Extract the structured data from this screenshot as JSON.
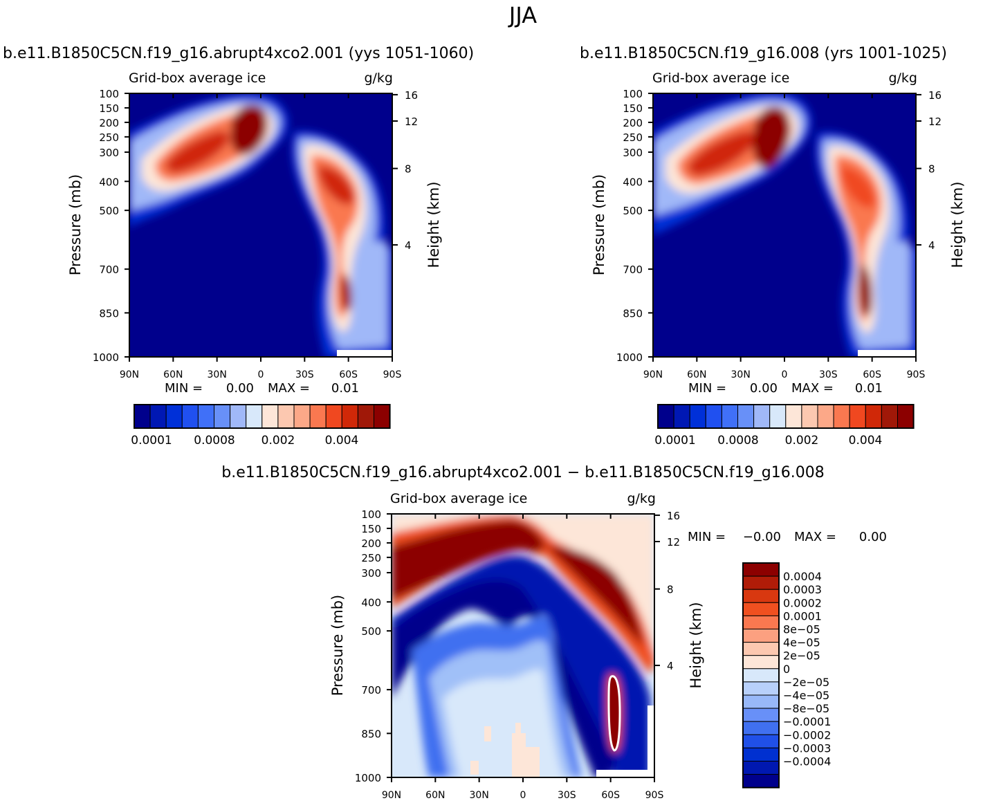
{
  "figure_title": "JJA",
  "colors": {
    "panel_top": [
      "#00008c",
      "#0018b4",
      "#0030d8",
      "#2050f0",
      "#4070f8",
      "#6890f8",
      "#a0b8f8",
      "#d8e8fa",
      "#fde6d8",
      "#fcc8b0",
      "#fca888",
      "#fa7850",
      "#f04820",
      "#d02808",
      "#a01808",
      "#8c0000"
    ],
    "diff": [
      "#8c0000",
      "#b01c08",
      "#d83810",
      "#f05020",
      "#fa7850",
      "#fca080",
      "#fcc8b0",
      "#fde6d8",
      "#d8e8fa",
      "#b8d0fa",
      "#98b8f8",
      "#6890f8",
      "#4070f0",
      "#2050e8",
      "#0030d0",
      "#0018b0",
      "#00008c"
    ]
  },
  "chart_data": [
    {
      "type": "heatmap",
      "panel": "left",
      "title": "b.e11.B1850C5CN.f19_g16.abrupt4xco2.001 (yys 1051-1060)",
      "subtitle_left": "Grid-box average ice",
      "subtitle_right": "g/kg",
      "ylabel": "Pressure (mb)",
      "ylabel_right": "Height (km)",
      "x_ticks": [
        "90N",
        "60N",
        "30N",
        "0",
        "30S",
        "60S",
        "90S"
      ],
      "xlim": [
        90,
        -90
      ],
      "y_ticks": [
        "100",
        "150",
        "200",
        "250",
        "300",
        "400",
        "500",
        "700",
        "850",
        "1000"
      ],
      "ylim": [
        100,
        1000
      ],
      "y2_ticks": [
        "16",
        "12",
        "8",
        "4"
      ],
      "stats": {
        "min_label": "MIN =",
        "min_value": "0.00",
        "max_label": "MAX =",
        "max_value": "0.01"
      },
      "colorbar_labels": [
        "0.0001",
        "0.0008",
        "0.002",
        "0.004"
      ]
    },
    {
      "type": "heatmap",
      "panel": "right",
      "title": "b.e11.B1850C5CN.f19_g16.008 (yrs 1001-1025)",
      "subtitle_left": "Grid-box average ice",
      "subtitle_right": "g/kg",
      "ylabel": "Pressure (mb)",
      "ylabel_right": "Height (km)",
      "x_ticks": [
        "90N",
        "60N",
        "30N",
        "0",
        "30S",
        "60S",
        "90S"
      ],
      "xlim": [
        90,
        -90
      ],
      "y_ticks": [
        "100",
        "150",
        "200",
        "250",
        "300",
        "400",
        "500",
        "700",
        "850",
        "1000"
      ],
      "ylim": [
        100,
        1000
      ],
      "y2_ticks": [
        "16",
        "12",
        "8",
        "4"
      ],
      "stats": {
        "min_label": "MIN =",
        "min_value": "0.00",
        "max_label": "MAX =",
        "max_value": "0.01"
      },
      "colorbar_labels": [
        "0.0001",
        "0.0008",
        "0.002",
        "0.004"
      ]
    },
    {
      "type": "heatmap",
      "panel": "difference",
      "title": "b.e11.B1850C5CN.f19_g16.abrupt4xco2.001 − b.e11.B1850C5CN.f19_g16.008",
      "subtitle_left": "Grid-box average ice",
      "subtitle_right": "g/kg",
      "ylabel": "Pressure (mb)",
      "ylabel_right": "Height (km)",
      "x_ticks": [
        "90N",
        "60N",
        "30N",
        "0",
        "30S",
        "60S",
        "90S"
      ],
      "xlim": [
        90,
        -90
      ],
      "y_ticks": [
        "100",
        "150",
        "200",
        "250",
        "300",
        "400",
        "500",
        "700",
        "850",
        "1000"
      ],
      "ylim": [
        100,
        1000
      ],
      "y2_ticks": [
        "16",
        "12",
        "8",
        "4"
      ],
      "stats": {
        "min_label": "MIN =",
        "min_value": "−0.00",
        "max_label": "MAX =",
        "max_value": "0.00"
      },
      "colorbar_labels": [
        "0.0004",
        "0.0003",
        "0.0002",
        "0.0001",
        "8e−05",
        "4e−05",
        "2e−05",
        "0",
        "−2e−05",
        "−4e−05",
        "−8e−05",
        "−0.0001",
        "−0.0002",
        "−0.0003",
        "−0.0004"
      ]
    }
  ]
}
